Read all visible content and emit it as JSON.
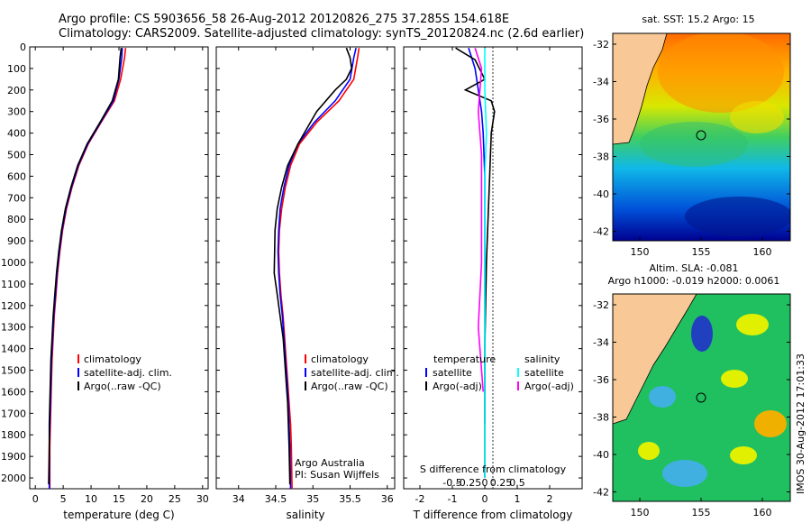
{
  "title": {
    "line1": "Argo profile: CS 5903656_58 26-Aug-2012 20120826_275 37.285S 154.618E",
    "line2": "Climatology: CARS2009. Satellite-adjusted climatology: synTS_20120824.nc (2.6d earlier)"
  },
  "colors": {
    "climatology": "#ff0000",
    "satellite": "#0000ff",
    "argo": "#000000",
    "sal_satellite": "#00ffff",
    "sal_argo": "#ff00ff",
    "land": "#f8c896"
  },
  "chart_data": [
    {
      "type": "line",
      "id": "temperature",
      "xlabel": "temperature (deg C)",
      "ylabel": "",
      "xlim": [
        -1,
        31
      ],
      "ylim": [
        2050,
        0
      ],
      "xticks": [
        0,
        5,
        10,
        15,
        20,
        25,
        30
      ],
      "yticks": [
        0,
        100,
        200,
        300,
        400,
        500,
        600,
        700,
        800,
        900,
        1000,
        1100,
        1200,
        1300,
        1400,
        1500,
        1600,
        1700,
        1800,
        1900,
        2000
      ],
      "legend": [
        "climatology",
        "satellite-adj. clim.",
        "Argo(..raw -QC)"
      ],
      "series": [
        {
          "name": "climatology",
          "color": "red",
          "x": [
            16.2,
            16.0,
            15.3,
            14.2,
            11.8,
            9.5,
            7.8,
            6.6,
            5.6,
            4.9,
            4.4,
            4.0,
            3.7,
            3.4,
            3.2,
            3.0,
            2.9,
            2.8,
            2.7,
            2.6,
            2.6
          ],
          "y": [
            5,
            50,
            150,
            250,
            350,
            450,
            550,
            650,
            750,
            850,
            950,
            1050,
            1150,
            1250,
            1350,
            1450,
            1550,
            1650,
            1750,
            1850,
            2050
          ]
        },
        {
          "name": "satellite-adj. clim.",
          "color": "blue",
          "x": [
            15.6,
            15.5,
            15.0,
            14.0,
            11.7,
            9.4,
            7.7,
            6.5,
            5.5,
            4.8,
            4.3,
            3.9,
            3.6,
            3.3,
            3.1,
            2.9,
            2.8,
            2.7,
            2.6,
            2.5,
            2.5
          ],
          "y": [
            5,
            50,
            150,
            250,
            350,
            450,
            550,
            650,
            750,
            850,
            950,
            1050,
            1150,
            1250,
            1350,
            1450,
            1550,
            1650,
            1750,
            1850,
            2050
          ]
        },
        {
          "name": "Argo(..raw -QC)",
          "color": "black",
          "x": [
            15.4,
            15.2,
            14.9,
            13.8,
            11.6,
            9.3,
            7.6,
            6.4,
            5.4,
            4.7,
            4.2,
            3.8,
            3.5,
            3.2,
            3.0,
            2.8,
            2.7,
            2.6,
            2.5,
            2.5,
            2.4
          ],
          "y": [
            5,
            50,
            150,
            250,
            350,
            450,
            550,
            650,
            750,
            850,
            950,
            1050,
            1150,
            1250,
            1350,
            1450,
            1550,
            1650,
            1750,
            1850,
            2030
          ]
        }
      ]
    },
    {
      "type": "line",
      "id": "salinity",
      "xlabel": "salinity",
      "xlim": [
        33.7,
        36.1
      ],
      "ylim": [
        2050,
        0
      ],
      "xticks": [
        34,
        34.5,
        35,
        35.5,
        36
      ],
      "legend": [
        "climatology",
        "satellite-adj. clim.",
        "Argo(..raw -QC)"
      ],
      "annotation": [
        "Argo Australia",
        "PI: Susan Wijffels"
      ],
      "series": [
        {
          "name": "climatology",
          "color": "red",
          "x": [
            35.62,
            35.6,
            35.55,
            35.35,
            35.05,
            34.82,
            34.7,
            34.63,
            34.58,
            34.55,
            34.54,
            34.55,
            34.57,
            34.6,
            34.62,
            34.64,
            34.66,
            34.68,
            34.7,
            34.71,
            34.72
          ],
          "y": [
            5,
            50,
            150,
            250,
            350,
            450,
            550,
            650,
            750,
            850,
            950,
            1050,
            1150,
            1250,
            1350,
            1450,
            1550,
            1650,
            1750,
            1850,
            2050
          ]
        },
        {
          "name": "satellite-adj. clim.",
          "color": "blue",
          "x": [
            35.58,
            35.55,
            35.5,
            35.3,
            35.02,
            34.8,
            34.68,
            34.61,
            34.56,
            34.54,
            34.53,
            34.54,
            34.56,
            34.59,
            34.61,
            34.63,
            34.65,
            34.67,
            34.68,
            34.69,
            34.7
          ],
          "y": [
            5,
            50,
            150,
            250,
            350,
            450,
            550,
            650,
            750,
            850,
            950,
            1050,
            1150,
            1250,
            1350,
            1450,
            1550,
            1650,
            1750,
            1850,
            2050
          ]
        },
        {
          "name": "Argo(..raw -QC)",
          "color": "black",
          "x": [
            35.45,
            35.5,
            35.52,
            35.45,
            35.3,
            35.05,
            34.8,
            34.66,
            34.58,
            34.52,
            34.49,
            34.48,
            34.52,
            34.56,
            34.6,
            34.62,
            34.64,
            34.66,
            34.67,
            34.68,
            34.69
          ],
          "y": [
            5,
            50,
            100,
            150,
            200,
            300,
            450,
            550,
            650,
            750,
            850,
            1050,
            1150,
            1250,
            1350,
            1450,
            1550,
            1650,
            1750,
            1850,
            2030
          ]
        }
      ]
    },
    {
      "type": "line",
      "id": "difference",
      "xlabel": "T difference from climatology",
      "xlabel_top": "S difference from climatology",
      "xlim": [
        -2.5,
        3.0
      ],
      "ylim": [
        2050,
        0
      ],
      "xticks": [
        -2,
        -1,
        0,
        1,
        2
      ],
      "xticks_top": [
        "-0.5",
        "-0.25",
        "0",
        "0.25",
        "0.5"
      ],
      "legend_left_title": "temperature",
      "legend_right_title": "salinity",
      "legend": [
        "satellite",
        "Argo(-adj)",
        "satellite",
        "Argo(-adj)"
      ],
      "series": [
        {
          "name": "T satellite",
          "color": "blue",
          "x": [
            -0.5,
            -0.3,
            -0.2,
            -0.1,
            -0.05,
            0.0,
            0.0,
            0.0
          ],
          "y": [
            5,
            100,
            200,
            300,
            400,
            600,
            1200,
            1750
          ]
        },
        {
          "name": "T Argo(-adj)",
          "color": "black",
          "x": [
            -0.9,
            -0.3,
            0.0,
            -0.6,
            0.2,
            0.3,
            0.2,
            0.15,
            0.1,
            0.05,
            0.0,
            0.0
          ],
          "y": [
            5,
            60,
            150,
            200,
            250,
            300,
            400,
            600,
            800,
            1000,
            1400,
            2000
          ]
        },
        {
          "name": "S satellite",
          "color": "cyan",
          "x": [
            0.0,
            0.0,
            0.05,
            0.0,
            0.0,
            0.0,
            0.0
          ],
          "y": [
            5,
            200,
            400,
            600,
            1000,
            1600,
            2000
          ]
        },
        {
          "name": "S Argo(-adj)",
          "color": "magenta",
          "x": [
            -0.3,
            -0.1,
            -0.2,
            -0.1,
            -0.1,
            -0.1,
            -0.2,
            -0.05
          ],
          "y": [
            5,
            100,
            300,
            500,
            700,
            1000,
            1300,
            1600
          ]
        }
      ]
    }
  ],
  "maps": [
    {
      "id": "sst",
      "title": "sat. SST: 15.2  Argo: 15",
      "yticks": [
        "-32",
        "-34",
        "-36",
        "-38",
        "-40",
        "-42"
      ],
      "xticks": [
        "150",
        "155",
        "160"
      ]
    },
    {
      "id": "sla",
      "title1": "Altim. SLA: -0.081",
      "title2": "Argo h1000: -0.019 h2000: 0.0061",
      "yticks": [
        "-32",
        "-34",
        "-36",
        "-38",
        "-40",
        "-42"
      ],
      "xticks": [
        "150",
        "155",
        "160"
      ]
    }
  ],
  "side_label": "IMOS 30-Aug-2012 17:01:33"
}
